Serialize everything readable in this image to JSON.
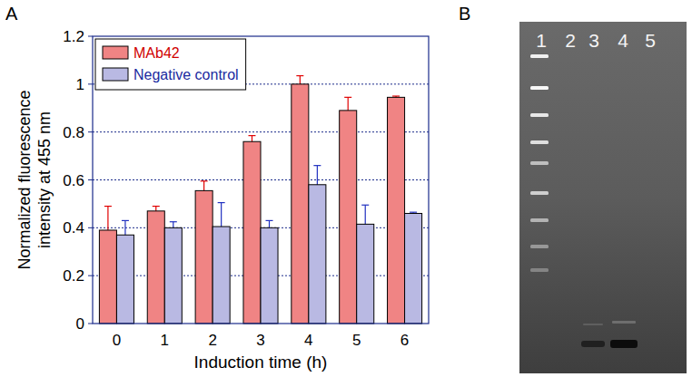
{
  "chart_data": {
    "type": "bar",
    "categories": [
      "0",
      "1",
      "2",
      "3",
      "4",
      "5",
      "6"
    ],
    "series": [
      {
        "name": "MAb42",
        "color": "#f08484",
        "values": [
          0.39,
          0.47,
          0.555,
          0.76,
          1.0,
          0.89,
          0.945
        ],
        "errors": [
          0.1,
          0.02,
          0.04,
          0.025,
          0.035,
          0.055,
          0.005
        ]
      },
      {
        "name": "Negative control",
        "color": "#b9b9e3",
        "values": [
          0.37,
          0.4,
          0.405,
          0.4,
          0.58,
          0.415,
          0.46
        ],
        "errors": [
          0.06,
          0.025,
          0.1,
          0.03,
          0.08,
          0.08,
          0.005
        ]
      }
    ],
    "x_label": "Induction time (h)",
    "y_label": "Normalized fluorescence intensity at 455 nm",
    "ylim": [
      0,
      1.2
    ],
    "yticks": [
      0,
      0.2,
      0.4,
      0.6,
      0.8,
      1,
      1.2
    ],
    "grid": true,
    "legend": "top-left"
  },
  "panel_labels": [
    "A",
    "B"
  ],
  "gel": {
    "lane_labels": [
      "1",
      "2",
      "3",
      "4",
      "5"
    ]
  }
}
